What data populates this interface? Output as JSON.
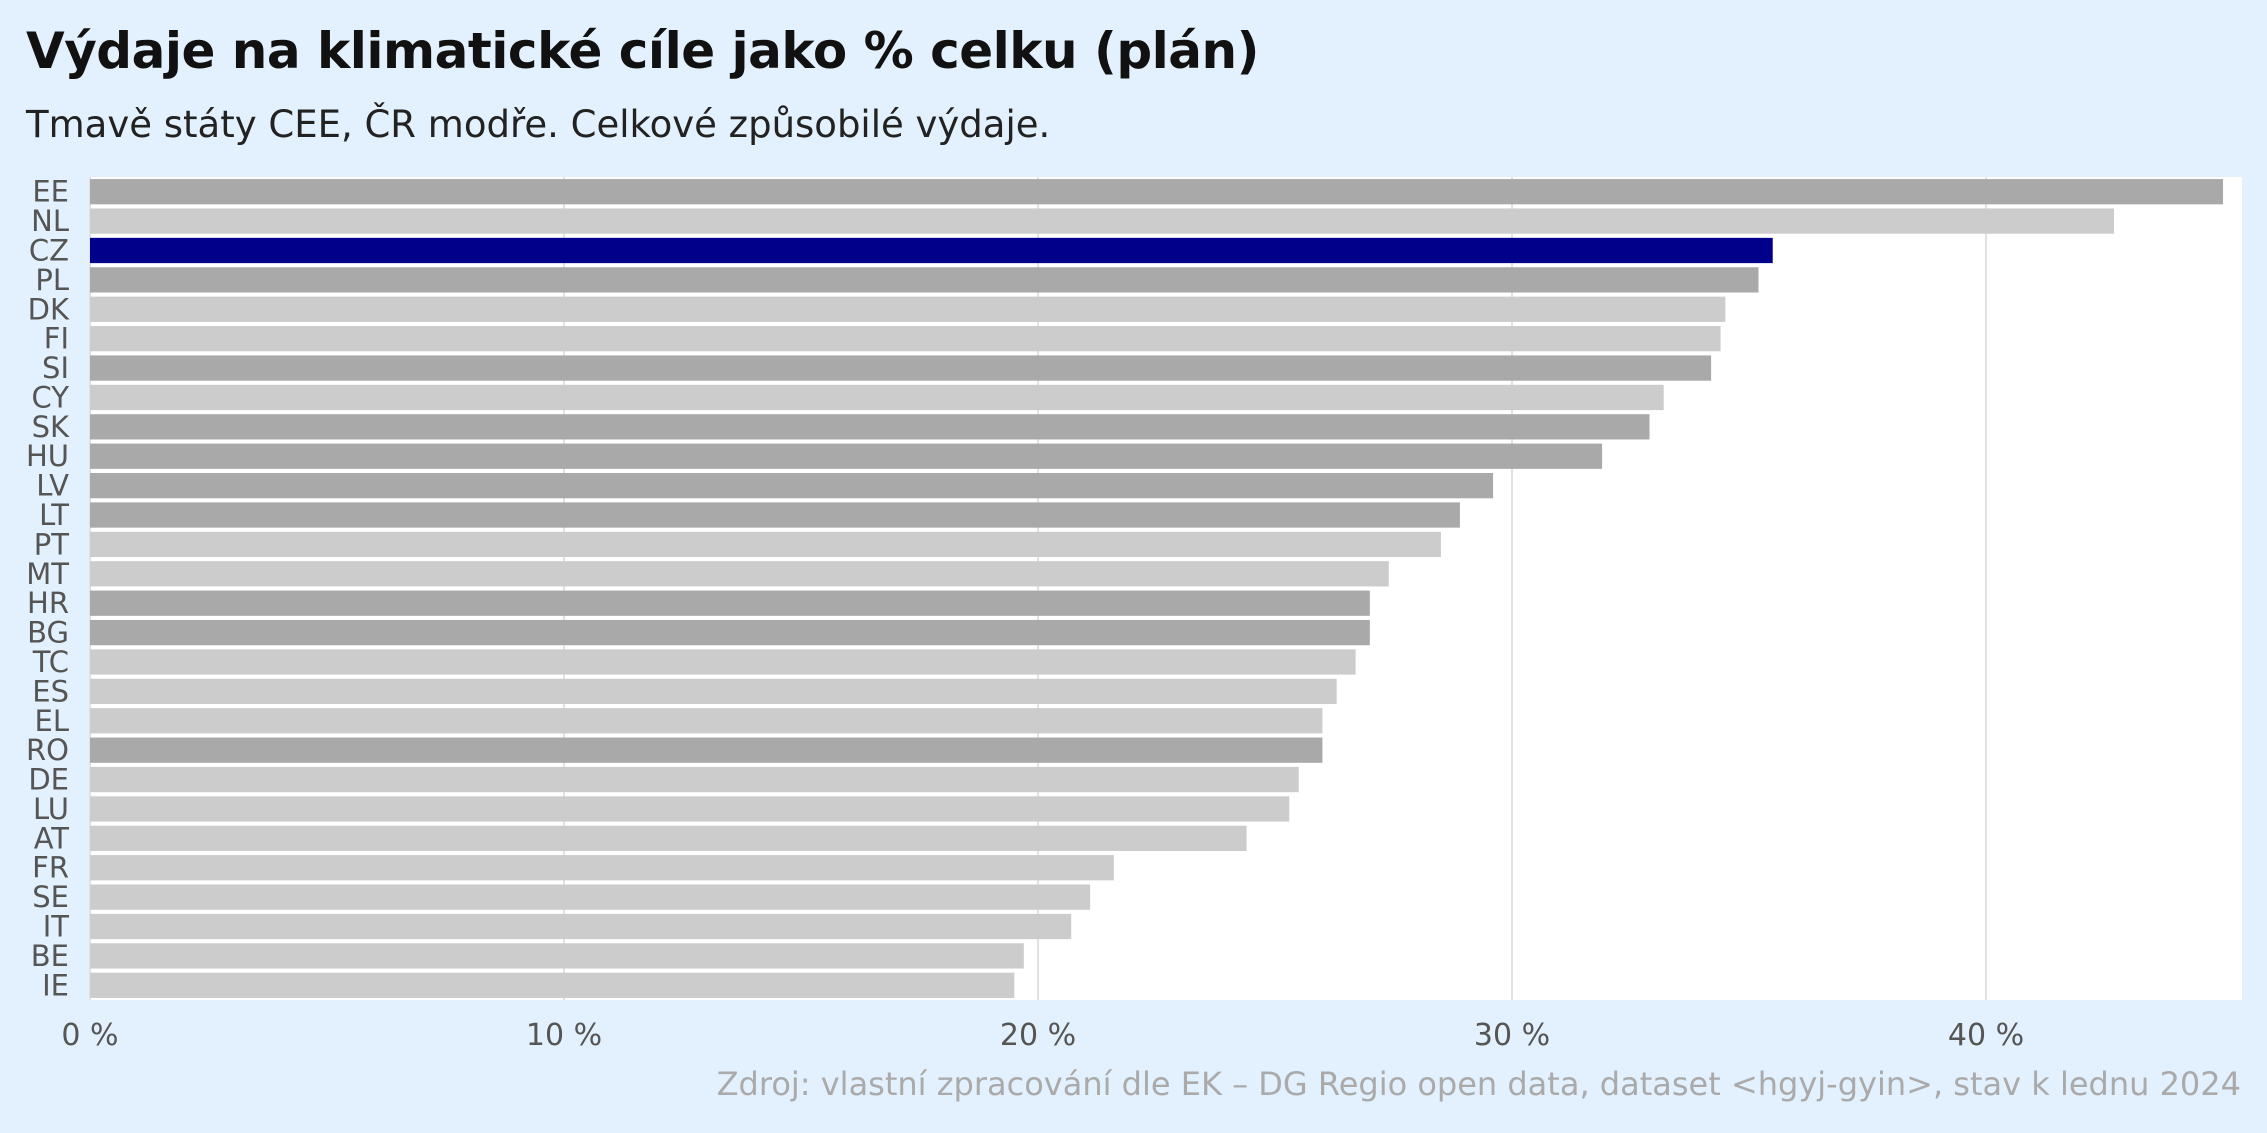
{
  "chart_data": {
    "type": "bar",
    "orientation": "horizontal",
    "title": "Výdaje na klimatické cíle jako % celku (plán)",
    "subtitle": "Tmavě státy CEE, ČR modře. Celkové způsobilé výdaje.",
    "caption": "Zdroj: vlastní zpracování dle EK – DG Regio open data, dataset <hgyj-gyin>, stav k lednu 2024",
    "categories": [
      "EE",
      "NL",
      "CZ",
      "PL",
      "DK",
      "FI",
      "SI",
      "CY",
      "SK",
      "HU",
      "LV",
      "LT",
      "PT",
      "MT",
      "HR",
      "BG",
      "TC",
      "ES",
      "EL",
      "RO",
      "DE",
      "LU",
      "AT",
      "FR",
      "SE",
      "IT",
      "BE",
      "IE"
    ],
    "values": [
      45.0,
      42.7,
      35.5,
      35.2,
      34.5,
      34.4,
      34.2,
      33.2,
      32.9,
      31.9,
      29.6,
      28.9,
      28.5,
      27.4,
      27.0,
      27.0,
      26.7,
      26.3,
      26.0,
      26.0,
      25.5,
      25.3,
      24.4,
      21.6,
      21.1,
      20.7,
      19.7,
      19.5
    ],
    "group": [
      "cee",
      "other",
      "cz",
      "cee",
      "other",
      "other",
      "cee",
      "other",
      "cee",
      "cee",
      "cee",
      "cee",
      "other",
      "other",
      "cee",
      "cee",
      "other",
      "other",
      "other",
      "cee",
      "other",
      "other",
      "other",
      "other",
      "other",
      "other",
      "other",
      "other"
    ],
    "colors": {
      "cz": "#00008b",
      "cee": "#a9a9a9",
      "other": "#cccccc"
    },
    "x_ticks": [
      "0 %",
      "10 %",
      "20 %",
      "30 %",
      "40 %"
    ],
    "x_tick_values": [
      0,
      10,
      20,
      30,
      40
    ],
    "xlim": [
      0,
      45.4
    ],
    "grid": true,
    "legend": "none"
  }
}
